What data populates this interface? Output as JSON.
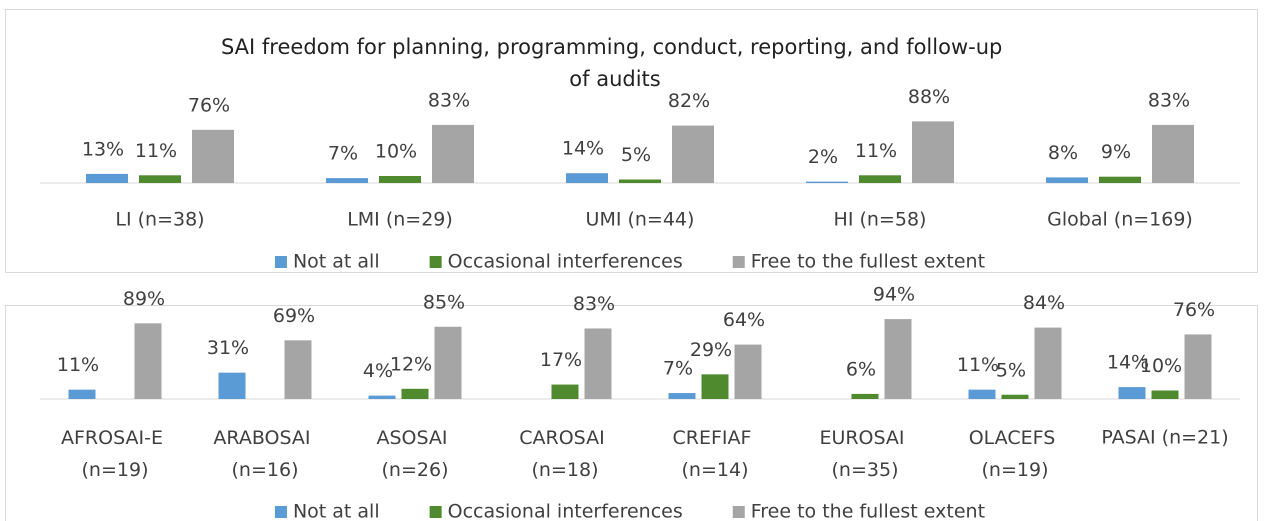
{
  "chart_data": [
    {
      "type": "bar",
      "title": "SAI freedom for planning, programming, conduct, reporting, and follow-up of audits",
      "categories": [
        "LI (n=38)",
        "LMI (n=29)",
        "UMI (n=44)",
        "HI (n=58)",
        "Global (n=169)"
      ],
      "series": [
        {
          "name": "Not at all",
          "color": "#5b9bd5",
          "values": [
            13,
            7,
            14,
            2,
            8
          ],
          "value_labels": [
            "13%",
            "7%",
            "14%",
            "2%",
            "8%"
          ]
        },
        {
          "name": "Occasional interferences",
          "color": "#4f8a2f",
          "values": [
            11,
            10,
            5,
            11,
            9
          ],
          "value_labels": [
            "11%",
            "10%",
            "5%",
            "11%",
            "9%"
          ]
        },
        {
          "name": "Free to the fullest extent",
          "color": "#a5a5a5",
          "values": [
            76,
            83,
            82,
            88,
            83
          ],
          "value_labels": [
            "76%",
            "83%",
            "82%",
            "88%",
            "83%"
          ]
        }
      ]
    },
    {
      "type": "bar",
      "categories": [
        "AFROSAI-E (n=19)",
        "ARABOSAI (n=16)",
        "ASOSAI (n=26)",
        "CAROSAI (n=18)",
        "CREFIAF (n=14)",
        "EUROSAI (n=35)",
        "OLACEFS (n=19)",
        "PASAI (n=21)"
      ],
      "series": [
        {
          "name": "Not at all",
          "color": "#5b9bd5",
          "values": [
            11,
            31,
            4,
            null,
            7,
            null,
            11,
            14
          ],
          "value_labels": [
            "11%",
            "31%",
            "4%",
            null,
            "7%",
            null,
            "11%",
            "14%"
          ]
        },
        {
          "name": "Occasional interferences",
          "color": "#4f8a2f",
          "values": [
            null,
            null,
            12,
            17,
            29,
            6,
            5,
            10
          ],
          "value_labels": [
            null,
            null,
            "12%",
            "17%",
            "29%",
            "6%",
            "5%",
            "10%"
          ]
        },
        {
          "name": "Free to the fullest extent",
          "color": "#a5a5a5",
          "values": [
            89,
            69,
            85,
            83,
            64,
            94,
            84,
            76
          ],
          "value_labels": [
            "89%",
            "69%",
            "85%",
            "83%",
            "64%",
            "94%",
            "84%",
            "76%"
          ]
        }
      ]
    }
  ]
}
